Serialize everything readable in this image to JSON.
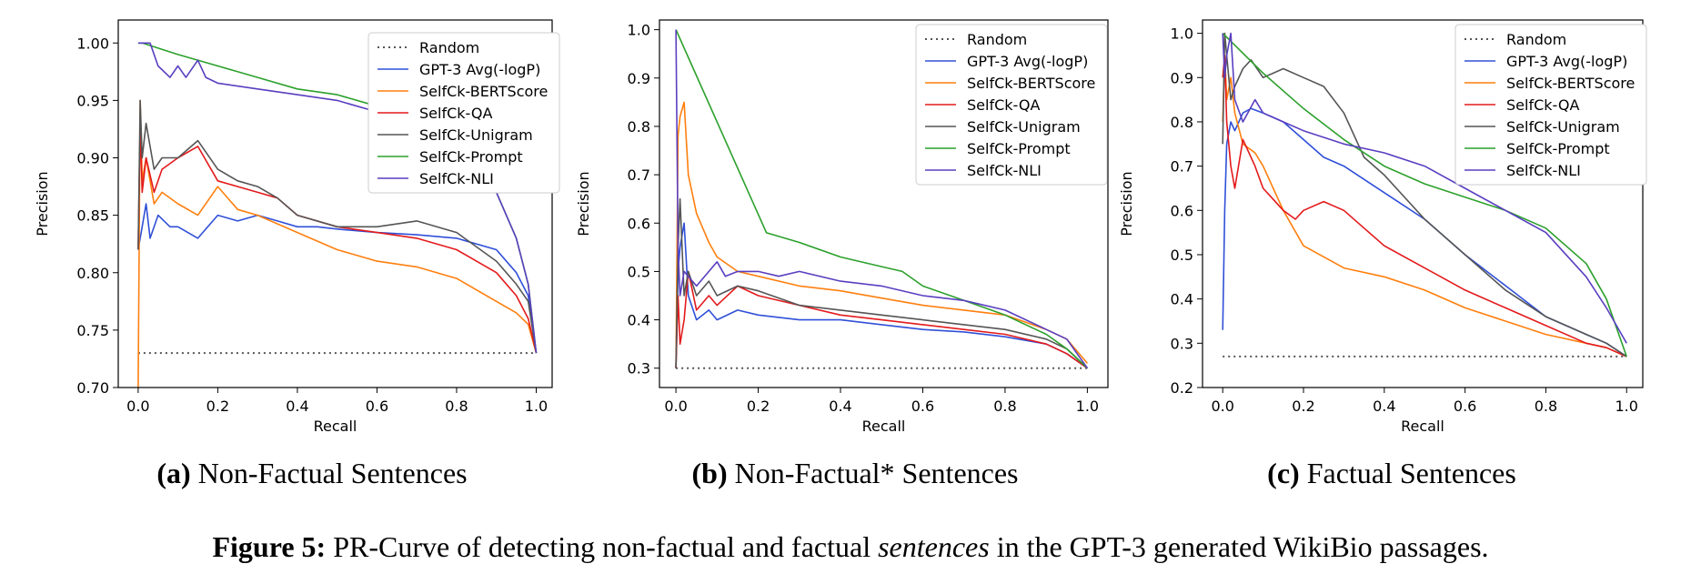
{
  "figure": {
    "label": "Figure 5:",
    "text_before": "PR-Curve of detecting non-factual and factual",
    "emph": "sentences",
    "text_after": "in the GPT-3 generated WikiBio passages."
  },
  "legend_entries": [
    {
      "name": "Random",
      "color": "#555555",
      "dash": true
    },
    {
      "name": "GPT-3 Avg(-logP)",
      "color": "#3050d8"
    },
    {
      "name": "SelfCk-BERTScore",
      "color": "#ff7f0e"
    },
    {
      "name": "SelfCk-QA",
      "color": "#e31a1c"
    },
    {
      "name": "SelfCk-Unigram",
      "color": "#555555"
    },
    {
      "name": "SelfCk-Prompt",
      "color": "#2ca02c"
    },
    {
      "name": "SelfCk-NLI",
      "color": "#5a3fc0"
    }
  ],
  "chart_data": [
    {
      "type": "line",
      "subcaption_label": "(a)",
      "subcaption_text": "Non-Factual Sentences",
      "xlabel": "Recall",
      "ylabel": "Precision",
      "xlim": [
        -0.05,
        1.04
      ],
      "ylim": [
        0.7,
        1.02
      ],
      "xticks": [
        0.0,
        0.2,
        0.4,
        0.6,
        0.8,
        1.0
      ],
      "xtick_labels": [
        "0.0",
        "0.2",
        "0.4",
        "0.6",
        "0.8",
        "1.0"
      ],
      "yticks": [
        0.7,
        0.75,
        0.8,
        0.85,
        0.9,
        0.95,
        1.0
      ],
      "ytick_labels": [
        "0.70",
        "0.75",
        "0.80",
        "0.85",
        "0.90",
        "0.95",
        "1.00"
      ],
      "legend_position": "top-right",
      "grid": false,
      "series": [
        {
          "name": "Random",
          "x": [
            0.0,
            1.0
          ],
          "y": [
            0.73,
            0.73
          ]
        },
        {
          "name": "GPT-3 Avg(-logP)",
          "x": [
            0.0,
            0.01,
            0.02,
            0.03,
            0.05,
            0.08,
            0.1,
            0.15,
            0.2,
            0.25,
            0.3,
            0.35,
            0.4,
            0.45,
            0.5,
            0.6,
            0.7,
            0.8,
            0.9,
            0.95,
            0.98,
            1.0
          ],
          "y": [
            0.82,
            0.84,
            0.86,
            0.83,
            0.85,
            0.84,
            0.84,
            0.83,
            0.85,
            0.845,
            0.85,
            0.845,
            0.84,
            0.84,
            0.838,
            0.835,
            0.833,
            0.83,
            0.82,
            0.8,
            0.78,
            0.73
          ]
        },
        {
          "name": "SelfCk-BERTScore",
          "x": [
            0.0,
            0.005,
            0.01,
            0.02,
            0.04,
            0.06,
            0.1,
            0.15,
            0.2,
            0.25,
            0.3,
            0.4,
            0.5,
            0.6,
            0.7,
            0.8,
            0.9,
            0.95,
            0.98,
            1.0
          ],
          "y": [
            0.7,
            0.95,
            0.88,
            0.9,
            0.86,
            0.87,
            0.86,
            0.85,
            0.875,
            0.855,
            0.85,
            0.835,
            0.82,
            0.81,
            0.805,
            0.795,
            0.775,
            0.765,
            0.755,
            0.73
          ]
        },
        {
          "name": "SelfCk-QA",
          "x": [
            0.0,
            0.005,
            0.01,
            0.02,
            0.04,
            0.06,
            0.1,
            0.15,
            0.2,
            0.25,
            0.3,
            0.35,
            0.4,
            0.5,
            0.6,
            0.7,
            0.8,
            0.9,
            0.95,
            0.98,
            1.0
          ],
          "y": [
            0.82,
            0.93,
            0.87,
            0.9,
            0.87,
            0.89,
            0.9,
            0.91,
            0.88,
            0.875,
            0.87,
            0.865,
            0.85,
            0.84,
            0.835,
            0.83,
            0.82,
            0.8,
            0.78,
            0.76,
            0.73
          ]
        },
        {
          "name": "SelfCk-Unigram",
          "x": [
            0.0,
            0.005,
            0.01,
            0.02,
            0.04,
            0.06,
            0.1,
            0.15,
            0.2,
            0.25,
            0.3,
            0.35,
            0.4,
            0.5,
            0.6,
            0.7,
            0.8,
            0.9,
            0.95,
            0.98,
            1.0
          ],
          "y": [
            0.82,
            0.95,
            0.9,
            0.93,
            0.89,
            0.9,
            0.9,
            0.915,
            0.89,
            0.88,
            0.875,
            0.865,
            0.85,
            0.84,
            0.84,
            0.845,
            0.835,
            0.81,
            0.79,
            0.775,
            0.73
          ]
        },
        {
          "name": "SelfCk-Prompt",
          "x": [
            0.0,
            0.01,
            0.1,
            0.2,
            0.3,
            0.4,
            0.5,
            0.6,
            0.7,
            0.8,
            0.85,
            0.9,
            0.95,
            0.98,
            1.0
          ],
          "y": [
            1.0,
            1.0,
            0.99,
            0.98,
            0.97,
            0.96,
            0.955,
            0.945,
            0.935,
            0.92,
            0.9,
            0.87,
            0.83,
            0.79,
            0.73
          ]
        },
        {
          "name": "SelfCk-NLI",
          "x": [
            0.0,
            0.01,
            0.03,
            0.05,
            0.08,
            0.1,
            0.12,
            0.15,
            0.17,
            0.2,
            0.3,
            0.4,
            0.5,
            0.6,
            0.7,
            0.8,
            0.85,
            0.9,
            0.95,
            0.98,
            1.0
          ],
          "y": [
            1.0,
            1.0,
            1.0,
            0.98,
            0.97,
            0.98,
            0.97,
            0.985,
            0.97,
            0.965,
            0.96,
            0.955,
            0.95,
            0.94,
            0.92,
            0.9,
            0.88,
            0.87,
            0.83,
            0.79,
            0.73
          ]
        }
      ]
    },
    {
      "type": "line",
      "subcaption_label": "(b)",
      "subcaption_text": "Non-Factual* Sentences",
      "xlabel": "Recall",
      "ylabel": "Precision",
      "xlim": [
        -0.04,
        1.05
      ],
      "ylim": [
        0.26,
        1.02
      ],
      "xticks": [
        0.0,
        0.2,
        0.4,
        0.6,
        0.8,
        1.0
      ],
      "xtick_labels": [
        "0.0",
        "0.2",
        "0.4",
        "0.6",
        "0.8",
        "1.0"
      ],
      "yticks": [
        0.3,
        0.4,
        0.5,
        0.6,
        0.7,
        0.8,
        0.9,
        1.0
      ],
      "ytick_labels": [
        "0.3",
        "0.4",
        "0.5",
        "0.6",
        "0.7",
        "0.8",
        "0.9",
        "1.0"
      ],
      "legend_position": "top-right",
      "grid": false,
      "series": [
        {
          "name": "Random",
          "x": [
            0.0,
            1.0
          ],
          "y": [
            0.3,
            0.3
          ]
        },
        {
          "name": "GPT-3 Avg(-logP)",
          "x": [
            0.0,
            0.005,
            0.01,
            0.02,
            0.03,
            0.05,
            0.08,
            0.1,
            0.15,
            0.2,
            0.3,
            0.4,
            0.5,
            0.6,
            0.7,
            0.8,
            0.9,
            0.95,
            1.0
          ],
          "y": [
            0.3,
            0.5,
            0.55,
            0.6,
            0.45,
            0.4,
            0.42,
            0.4,
            0.42,
            0.41,
            0.4,
            0.4,
            0.39,
            0.38,
            0.375,
            0.365,
            0.35,
            0.33,
            0.3
          ]
        },
        {
          "name": "SelfCk-BERTScore",
          "x": [
            0.0,
            0.005,
            0.01,
            0.02,
            0.03,
            0.05,
            0.08,
            0.1,
            0.15,
            0.2,
            0.3,
            0.4,
            0.5,
            0.6,
            0.7,
            0.8,
            0.9,
            0.95,
            1.0
          ],
          "y": [
            0.3,
            0.78,
            0.82,
            0.85,
            0.7,
            0.62,
            0.56,
            0.53,
            0.5,
            0.49,
            0.47,
            0.46,
            0.445,
            0.43,
            0.42,
            0.41,
            0.38,
            0.36,
            0.31
          ]
        },
        {
          "name": "SelfCk-QA",
          "x": [
            0.0,
            0.005,
            0.01,
            0.02,
            0.03,
            0.05,
            0.08,
            0.1,
            0.15,
            0.2,
            0.3,
            0.4,
            0.5,
            0.6,
            0.7,
            0.8,
            0.9,
            0.95,
            1.0
          ],
          "y": [
            0.3,
            0.45,
            0.35,
            0.4,
            0.5,
            0.42,
            0.45,
            0.43,
            0.47,
            0.45,
            0.43,
            0.41,
            0.4,
            0.39,
            0.38,
            0.37,
            0.35,
            0.33,
            0.3
          ]
        },
        {
          "name": "SelfCk-Unigram",
          "x": [
            0.0,
            0.005,
            0.01,
            0.02,
            0.03,
            0.05,
            0.08,
            0.1,
            0.15,
            0.2,
            0.3,
            0.4,
            0.5,
            0.6,
            0.7,
            0.8,
            0.9,
            0.95,
            1.0
          ],
          "y": [
            0.3,
            0.55,
            0.65,
            0.45,
            0.5,
            0.45,
            0.48,
            0.45,
            0.47,
            0.46,
            0.43,
            0.42,
            0.41,
            0.4,
            0.39,
            0.38,
            0.36,
            0.34,
            0.3
          ]
        },
        {
          "name": "SelfCk-Prompt",
          "x": [
            0.0,
            0.22,
            0.3,
            0.4,
            0.5,
            0.55,
            0.6,
            0.7,
            0.8,
            0.9,
            0.95,
            1.0
          ],
          "y": [
            1.0,
            0.58,
            0.56,
            0.53,
            0.51,
            0.5,
            0.47,
            0.44,
            0.41,
            0.37,
            0.34,
            0.3
          ]
        },
        {
          "name": "SelfCk-NLI",
          "x": [
            0.0,
            0.005,
            0.01,
            0.02,
            0.05,
            0.08,
            0.1,
            0.12,
            0.15,
            0.2,
            0.25,
            0.3,
            0.4,
            0.5,
            0.6,
            0.7,
            0.8,
            0.9,
            0.95,
            1.0
          ],
          "y": [
            1.0,
            0.55,
            0.45,
            0.5,
            0.47,
            0.5,
            0.52,
            0.49,
            0.5,
            0.5,
            0.49,
            0.5,
            0.48,
            0.47,
            0.45,
            0.44,
            0.42,
            0.38,
            0.36,
            0.3
          ]
        }
      ]
    },
    {
      "type": "line",
      "subcaption_label": "(c)",
      "subcaption_text": "Factual Sentences",
      "xlabel": "Recall",
      "ylabel": "Precision",
      "xlim": [
        -0.05,
        1.04
      ],
      "ylim": [
        0.2,
        1.03
      ],
      "xticks": [
        0.0,
        0.2,
        0.4,
        0.6,
        0.8,
        1.0
      ],
      "xtick_labels": [
        "0.0",
        "0.2",
        "0.4",
        "0.6",
        "0.8",
        "1.0"
      ],
      "yticks": [
        0.2,
        0.3,
        0.4,
        0.5,
        0.6,
        0.7,
        0.8,
        0.9,
        1.0
      ],
      "ytick_labels": [
        "0.2",
        "0.3",
        "0.4",
        "0.5",
        "0.6",
        "0.7",
        "0.8",
        "0.9",
        "1.0"
      ],
      "legend_position": "top-right",
      "grid": false,
      "series": [
        {
          "name": "Random",
          "x": [
            0.0,
            1.0
          ],
          "y": [
            0.27,
            0.27
          ]
        },
        {
          "name": "GPT-3 Avg(-logP)",
          "x": [
            0.0,
            0.005,
            0.01,
            0.02,
            0.03,
            0.05,
            0.07,
            0.1,
            0.15,
            0.2,
            0.25,
            0.3,
            0.35,
            0.4,
            0.5,
            0.6,
            0.7,
            0.8,
            0.9,
            0.95,
            1.0
          ],
          "y": [
            0.33,
            0.6,
            0.75,
            0.8,
            0.78,
            0.82,
            0.83,
            0.82,
            0.8,
            0.76,
            0.72,
            0.7,
            0.67,
            0.64,
            0.58,
            0.5,
            0.43,
            0.36,
            0.32,
            0.3,
            0.27
          ]
        },
        {
          "name": "SelfCk-BERTScore",
          "x": [
            0.0,
            0.005,
            0.01,
            0.02,
            0.03,
            0.05,
            0.08,
            0.1,
            0.15,
            0.2,
            0.3,
            0.4,
            0.5,
            0.6,
            0.7,
            0.8,
            0.9,
            0.95,
            1.0
          ],
          "y": [
            0.8,
            0.95,
            0.85,
            0.9,
            0.82,
            0.75,
            0.73,
            0.7,
            0.6,
            0.52,
            0.47,
            0.45,
            0.42,
            0.38,
            0.35,
            0.32,
            0.3,
            0.29,
            0.27
          ]
        },
        {
          "name": "SelfCk-QA",
          "x": [
            0.0,
            0.005,
            0.01,
            0.02,
            0.03,
            0.05,
            0.08,
            0.1,
            0.12,
            0.15,
            0.18,
            0.2,
            0.25,
            0.3,
            0.35,
            0.4,
            0.5,
            0.6,
            0.7,
            0.8,
            0.9,
            0.95,
            1.0
          ],
          "y": [
            0.9,
            0.95,
            0.8,
            0.7,
            0.65,
            0.76,
            0.7,
            0.65,
            0.63,
            0.6,
            0.58,
            0.6,
            0.62,
            0.6,
            0.56,
            0.52,
            0.47,
            0.42,
            0.38,
            0.34,
            0.3,
            0.29,
            0.27
          ]
        },
        {
          "name": "SelfCk-Unigram",
          "x": [
            0.0,
            0.005,
            0.01,
            0.02,
            0.03,
            0.05,
            0.07,
            0.1,
            0.15,
            0.2,
            0.25,
            0.3,
            0.35,
            0.4,
            0.5,
            0.6,
            0.7,
            0.8,
            0.9,
            0.95,
            1.0
          ],
          "y": [
            0.75,
            1.0,
            0.95,
            0.85,
            0.88,
            0.92,
            0.94,
            0.9,
            0.92,
            0.9,
            0.88,
            0.82,
            0.72,
            0.68,
            0.58,
            0.5,
            0.42,
            0.36,
            0.32,
            0.3,
            0.27
          ]
        },
        {
          "name": "SelfCk-Prompt",
          "x": [
            0.0,
            0.1,
            0.2,
            0.3,
            0.4,
            0.5,
            0.6,
            0.7,
            0.8,
            0.9,
            0.95,
            1.0
          ],
          "y": [
            1.0,
            0.91,
            0.83,
            0.76,
            0.7,
            0.66,
            0.63,
            0.6,
            0.56,
            0.48,
            0.4,
            0.27
          ]
        },
        {
          "name": "SelfCk-NLI",
          "x": [
            0.0,
            0.005,
            0.01,
            0.02,
            0.03,
            0.05,
            0.08,
            0.1,
            0.15,
            0.2,
            0.3,
            0.4,
            0.5,
            0.6,
            0.7,
            0.8,
            0.9,
            0.95,
            1.0
          ],
          "y": [
            1.0,
            0.9,
            0.95,
            1.0,
            0.85,
            0.8,
            0.85,
            0.82,
            0.8,
            0.78,
            0.75,
            0.73,
            0.7,
            0.65,
            0.6,
            0.55,
            0.45,
            0.38,
            0.3
          ]
        }
      ]
    }
  ]
}
